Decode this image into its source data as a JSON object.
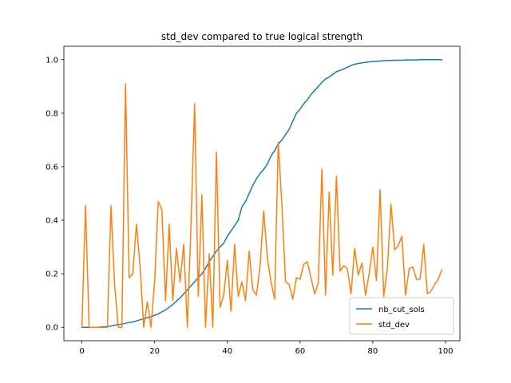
{
  "chart_data": {
    "type": "line",
    "title": "std_dev compared to true logical strength",
    "xlabel": "",
    "ylabel": "",
    "xlim": [
      -4.95,
      103.95
    ],
    "ylim": [
      -0.05,
      1.05
    ],
    "xticks": [
      0,
      20,
      40,
      60,
      80,
      100
    ],
    "yticks": [
      0.0,
      0.2,
      0.4,
      0.6,
      0.8,
      1.0
    ],
    "xtick_labels": [
      "0",
      "20",
      "40",
      "60",
      "80",
      "100"
    ],
    "ytick_labels": [
      "0.0",
      "0.2",
      "0.4",
      "0.6",
      "0.8",
      "1.0"
    ],
    "grid": false,
    "legend_position": "bottom-right",
    "x": [
      0,
      1,
      2,
      3,
      4,
      5,
      6,
      7,
      8,
      9,
      10,
      11,
      12,
      13,
      14,
      15,
      16,
      17,
      18,
      19,
      20,
      21,
      22,
      23,
      24,
      25,
      26,
      27,
      28,
      29,
      30,
      31,
      32,
      33,
      34,
      35,
      36,
      37,
      38,
      39,
      40,
      41,
      42,
      43,
      44,
      45,
      46,
      47,
      48,
      49,
      50,
      51,
      52,
      53,
      54,
      55,
      56,
      57,
      58,
      59,
      60,
      61,
      62,
      63,
      64,
      65,
      66,
      67,
      68,
      69,
      70,
      71,
      72,
      73,
      74,
      75,
      76,
      77,
      78,
      79,
      80,
      81,
      82,
      83,
      84,
      85,
      86,
      87,
      88,
      89,
      90,
      91,
      92,
      93,
      94,
      95,
      96,
      97,
      98,
      99
    ],
    "series": [
      {
        "name": "nb_cut_sols",
        "color": "#1f77b4",
        "values": [
          0.0,
          0.0,
          0.0,
          0.0,
          0.0,
          0.001,
          0.002,
          0.003,
          0.005,
          0.008,
          0.01,
          0.012,
          0.015,
          0.018,
          0.02,
          0.024,
          0.028,
          0.032,
          0.036,
          0.04,
          0.045,
          0.05,
          0.058,
          0.065,
          0.075,
          0.085,
          0.098,
          0.11,
          0.125,
          0.14,
          0.155,
          0.17,
          0.185,
          0.2,
          0.22,
          0.245,
          0.265,
          0.285,
          0.3,
          0.315,
          0.34,
          0.36,
          0.38,
          0.4,
          0.45,
          0.47,
          0.5,
          0.53,
          0.555,
          0.575,
          0.59,
          0.61,
          0.64,
          0.66,
          0.685,
          0.7,
          0.72,
          0.74,
          0.77,
          0.8,
          0.815,
          0.835,
          0.85,
          0.87,
          0.885,
          0.9,
          0.915,
          0.928,
          0.935,
          0.945,
          0.955,
          0.96,
          0.965,
          0.972,
          0.978,
          0.983,
          0.986,
          0.988,
          0.99,
          0.992,
          0.993,
          0.994,
          0.995,
          0.996,
          0.997,
          0.997,
          0.998,
          0.998,
          0.998,
          0.999,
          0.999,
          0.999,
          0.999,
          1.0,
          1.0,
          1.0,
          1.0,
          1.0,
          1.0,
          1.0
        ]
      },
      {
        "name": "std_dev",
        "color": "#ff7f0e",
        "values": [
          0.0,
          0.455,
          0.0,
          0.0,
          0.0,
          0.0,
          0.0,
          0.0,
          0.455,
          0.16,
          0.0,
          0.0,
          0.91,
          0.185,
          0.2,
          0.385,
          0.23,
          0.0,
          0.095,
          0.0,
          0.17,
          0.47,
          0.44,
          0.1,
          0.385,
          0.1,
          0.295,
          0.17,
          0.31,
          0.0,
          0.38,
          0.835,
          0.115,
          0.495,
          0.0,
          0.275,
          0.0,
          0.655,
          0.075,
          0.12,
          0.25,
          0.06,
          0.31,
          0.115,
          0.17,
          0.1,
          0.285,
          0.14,
          0.12,
          0.23,
          0.435,
          0.26,
          0.17,
          0.105,
          0.69,
          0.46,
          0.17,
          0.16,
          0.105,
          0.185,
          0.18,
          0.235,
          0.245,
          0.185,
          0.125,
          0.165,
          0.59,
          0.12,
          0.505,
          0.195,
          0.565,
          0.21,
          0.23,
          0.22,
          0.125,
          0.295,
          0.195,
          0.24,
          0.12,
          0.2,
          0.3,
          0.175,
          0.515,
          0.115,
          0.22,
          0.46,
          0.29,
          0.305,
          0.34,
          0.12,
          0.22,
          0.225,
          0.18,
          0.18,
          0.31,
          0.125,
          0.135,
          0.16,
          0.18,
          0.215
        ]
      }
    ]
  }
}
